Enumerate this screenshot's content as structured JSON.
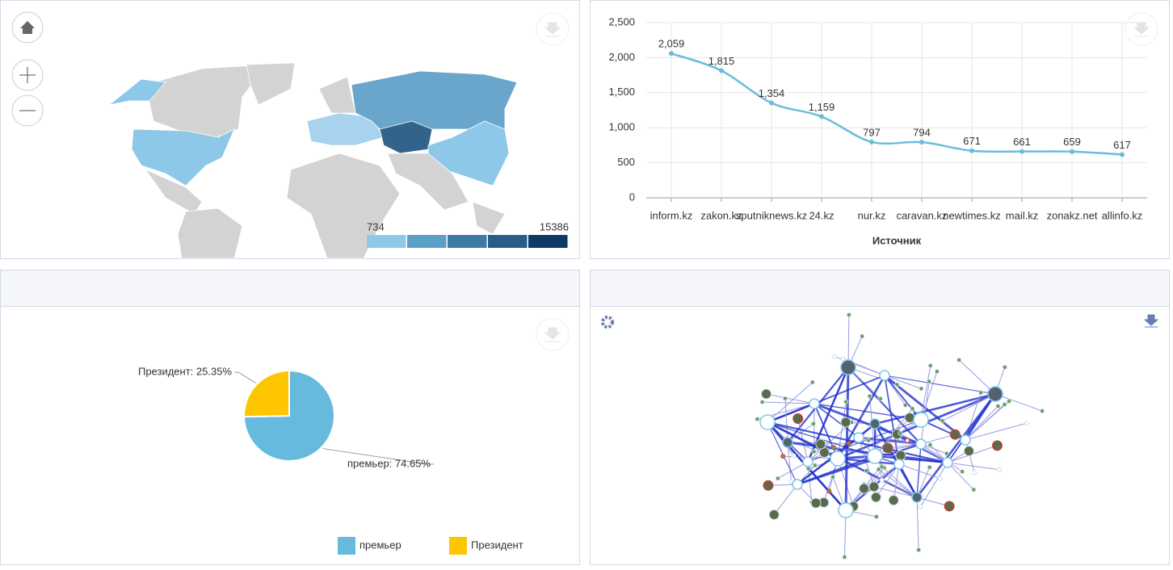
{
  "chart_data": [
    {
      "type": "map",
      "scale_min": 734,
      "scale_max": 15386,
      "scale_colors": [
        "#8ec8e8",
        "#5a9fc6",
        "#3d7ba5",
        "#275d88",
        "#0e3a66"
      ],
      "colors": {
        "usa": "#8ec8e8",
        "russia": "#6aa6cb",
        "kazakhstan": "#33628a",
        "china": "#8ec8e8",
        "europe": "#a8d2ee",
        "other": "#d3d3d3"
      }
    },
    {
      "type": "line",
      "x_label": "Источник",
      "color": "#6bbcdc",
      "categories": [
        "inform.kz",
        "zakon.kz",
        "sputniknews.kz",
        "24.kz",
        "nur.kz",
        "caravan.kz",
        "newtimes.kz",
        "mail.kz",
        "zonakz.net",
        "allinfo.kz"
      ],
      "values": [
        2059,
        1815,
        1354,
        1159,
        797,
        794,
        671,
        661,
        659,
        617
      ],
      "value_labels": [
        "2,059",
        "1,815",
        "1,354",
        "1,159",
        "797",
        "794",
        "671",
        "661",
        "659",
        "617"
      ],
      "ylim": [
        0,
        2500
      ],
      "yticks": [
        0,
        500,
        {
          "value": 1000,
          "label": "1,000"
        },
        {
          "value": 1500,
          "label": "1,500"
        },
        {
          "value": 2000,
          "label": "2,000"
        },
        {
          "value": 2500,
          "label": "2,500"
        }
      ],
      "grid": true
    },
    {
      "type": "pie",
      "categories": [
        "премьер",
        "Президент"
      ],
      "values": [
        74.65,
        25.35
      ],
      "value_labels": [
        "премьер: 74.65%",
        "Президент: 25.35%"
      ],
      "colors": [
        "#66bade",
        "#fec601"
      ]
    }
  ]
}
